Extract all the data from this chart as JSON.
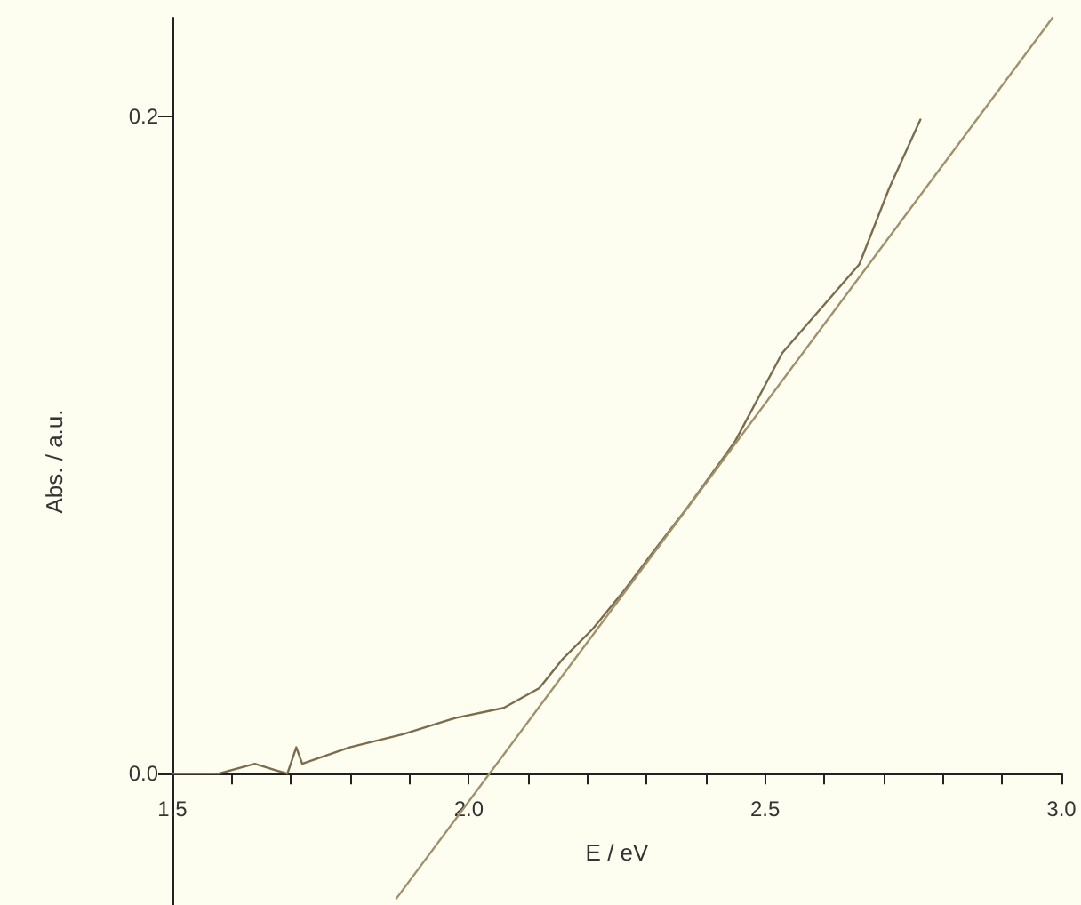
{
  "chart_data": {
    "type": "line",
    "xlabel": "E / eV",
    "ylabel": "Abs. / a.u.",
    "xlim": [
      1.5,
      3.0
    ],
    "ylim": [
      -0.04,
      0.23
    ],
    "xticks": [
      {
        "value": 1.5,
        "label": "1.5"
      },
      {
        "value": 1.6,
        "label": null
      },
      {
        "value": 1.7,
        "label": null
      },
      {
        "value": 1.8,
        "label": null
      },
      {
        "value": 1.9,
        "label": null
      },
      {
        "value": 2.0,
        "label": "2.0"
      },
      {
        "value": 2.1,
        "label": null
      },
      {
        "value": 2.2,
        "label": null
      },
      {
        "value": 2.3,
        "label": null
      },
      {
        "value": 2.4,
        "label": null
      },
      {
        "value": 2.5,
        "label": "2.5"
      },
      {
        "value": 2.6,
        "label": null
      },
      {
        "value": 2.7,
        "label": null
      },
      {
        "value": 2.8,
        "label": null
      },
      {
        "value": 2.9,
        "label": null
      },
      {
        "value": 3.0,
        "label": "3.0"
      }
    ],
    "yticks": [
      {
        "value": 0,
        "label": "0.0"
      },
      {
        "value": 0.2,
        "label": "0.2"
      }
    ],
    "marker": "none",
    "line_style": "solid",
    "series": [
      {
        "color": "#7d6c4c",
        "x": [
          1.5,
          1.578,
          1.639,
          1.674,
          1.694,
          1.709,
          1.719,
          1.799,
          1.889,
          1.979,
          2.059,
          2.119,
          2.159,
          2.209,
          2.259,
          2.309,
          2.369,
          2.449,
          2.529,
          2.659,
          2.709,
          2.762
        ],
        "values": [
          0.0,
          0.0,
          0.003,
          0.001,
          0.0,
          0.008,
          0.003,
          0.008,
          0.012,
          0.017,
          0.02,
          0.026,
          0.035,
          0.044,
          0.055,
          0.067,
          0.081,
          0.101,
          0.128,
          0.155,
          0.178,
          0.199
        ]
      },
      {
        "type": "line",
        "color": "#a0916a",
        "x": [
          1.878,
          2.985
        ],
        "values": [
          -0.038,
          0.23
        ]
      }
    ]
  }
}
